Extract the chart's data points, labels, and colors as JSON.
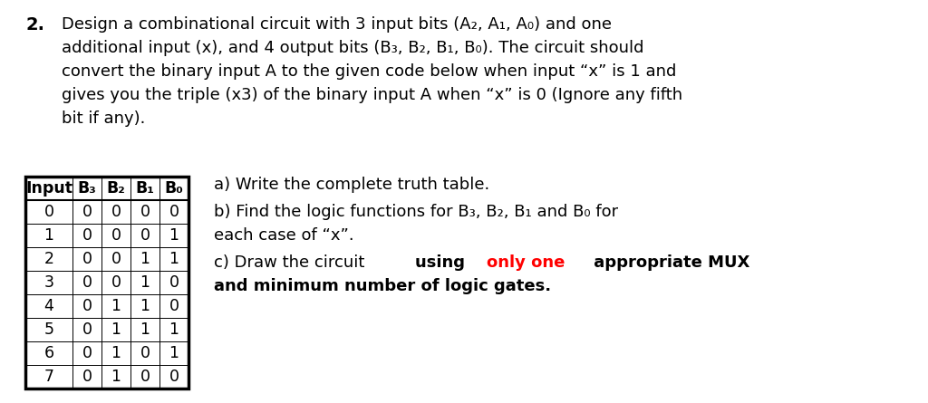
{
  "background_color": "#ffffff",
  "bold_number": "2.",
  "main_text_lines": [
    "Design a combinational circuit with 3 input bits (A₂, A₁, A₀) and one",
    "additional input (x), and 4 output bits (B₃, B₂, B₁, B₀). The circuit should",
    "convert the binary input A to the given code below when input “x” is 1 and",
    "gives you the triple (x3) of the binary input A when “x” is 0 (Ignore any fifth",
    "bit if any)."
  ],
  "table_headers": [
    "Input",
    "B₃",
    "B₂",
    "B₁",
    "B₀"
  ],
  "table_data": [
    [
      0,
      0,
      0,
      0,
      0
    ],
    [
      1,
      0,
      0,
      0,
      1
    ],
    [
      2,
      0,
      0,
      1,
      1
    ],
    [
      3,
      0,
      0,
      1,
      0
    ],
    [
      4,
      0,
      1,
      1,
      0
    ],
    [
      5,
      0,
      1,
      1,
      1
    ],
    [
      6,
      0,
      1,
      0,
      1
    ],
    [
      7,
      0,
      1,
      0,
      0
    ]
  ],
  "side_text_a": "a) Write the complete truth table.",
  "side_text_b1": "b) Find the logic functions for B₃, B₂, B₁ and B₀ for",
  "side_text_b2": "each case of “x”.",
  "side_text_c_seg1": "c) Draw the circuit ",
  "side_text_c_seg2": "using ",
  "side_text_c_seg3": "only one",
  "side_text_c_seg4": " appropriate MUX",
  "side_text_c2": "and minimum number of logic gates.",
  "font_size_main": 13.0,
  "font_size_table": 12.5,
  "font_size_side": 13.0,
  "text_color": "#000000",
  "red_color": "#ff0000"
}
